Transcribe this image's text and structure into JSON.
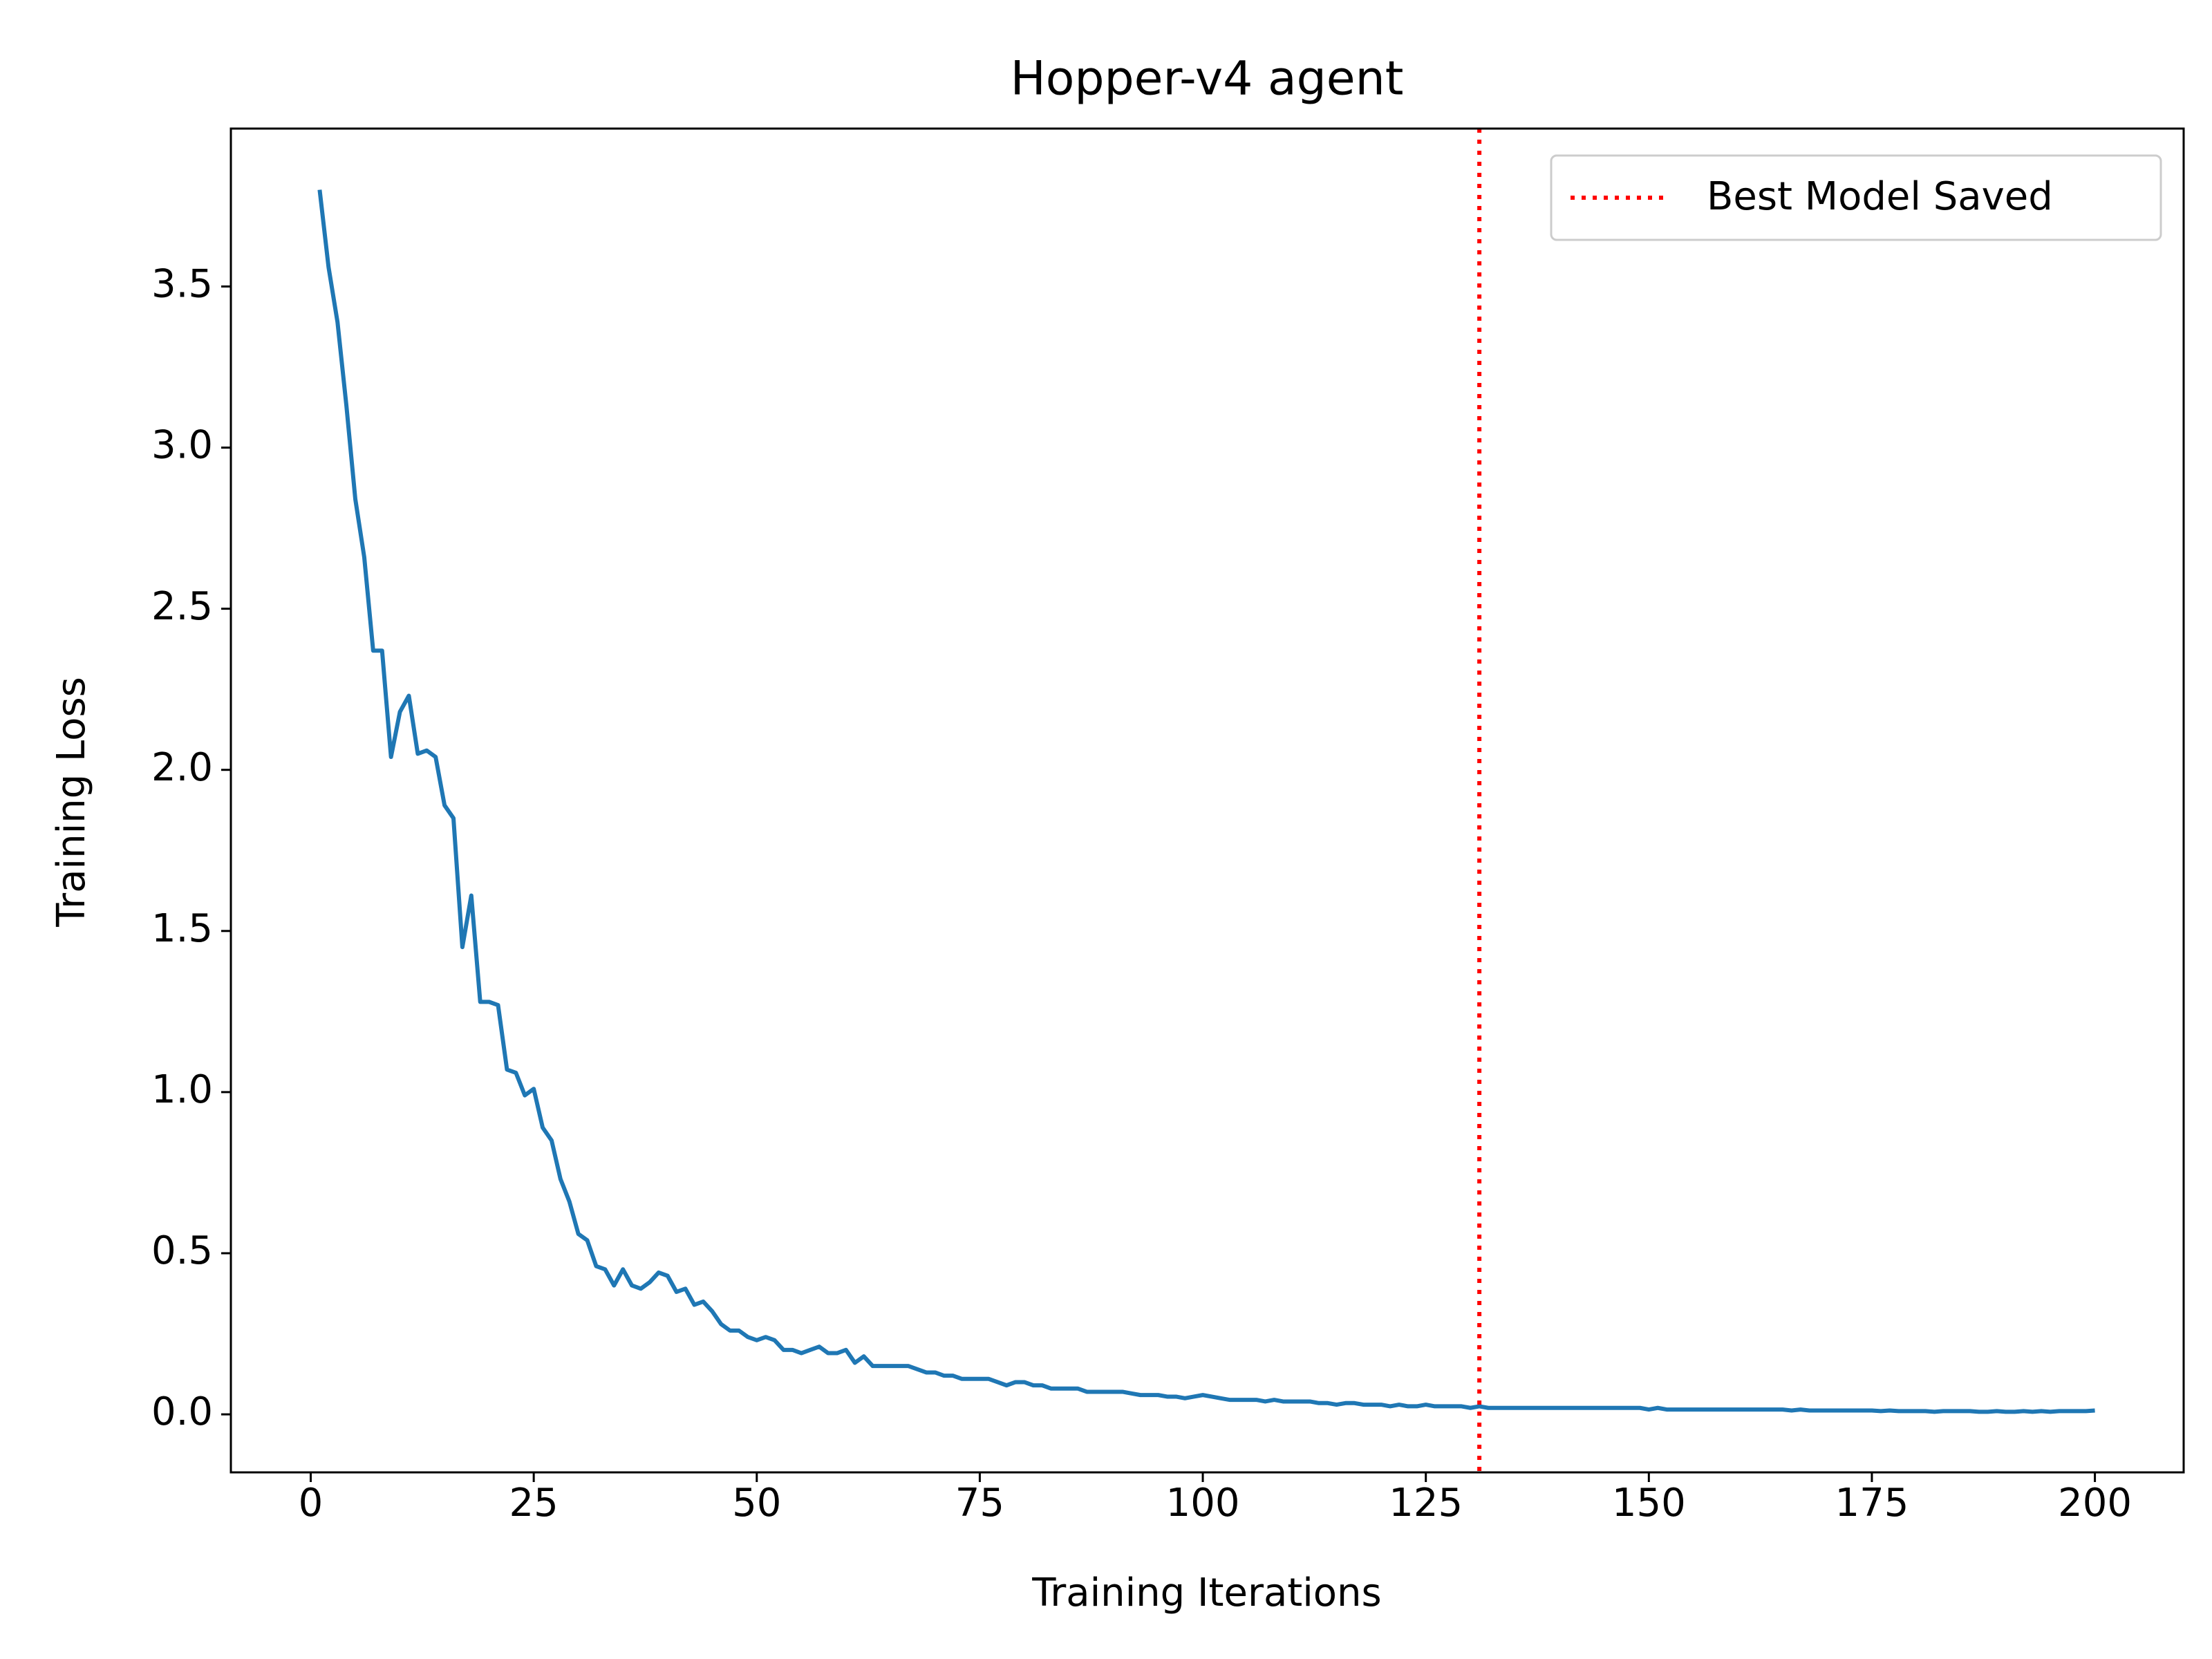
{
  "chart_data": {
    "type": "line",
    "title": "Hopper-v4 agent",
    "xlabel": "Training Iterations",
    "ylabel": "Training Loss",
    "x": [
      1,
      2,
      3,
      4,
      5,
      6,
      7,
      8,
      9,
      10,
      11,
      12,
      13,
      14,
      15,
      16,
      17,
      18,
      19,
      20,
      21,
      22,
      23,
      24,
      25,
      26,
      27,
      28,
      29,
      30,
      31,
      32,
      33,
      34,
      35,
      36,
      37,
      38,
      39,
      40,
      41,
      42,
      43,
      44,
      45,
      46,
      47,
      48,
      49,
      50,
      51,
      52,
      53,
      54,
      55,
      56,
      57,
      58,
      59,
      60,
      61,
      62,
      63,
      64,
      65,
      66,
      67,
      68,
      69,
      70,
      71,
      72,
      73,
      74,
      75,
      76,
      77,
      78,
      79,
      80,
      81,
      82,
      83,
      84,
      85,
      86,
      87,
      88,
      89,
      90,
      91,
      92,
      93,
      94,
      95,
      96,
      97,
      98,
      99,
      100,
      101,
      102,
      103,
      104,
      105,
      106,
      107,
      108,
      109,
      110,
      111,
      112,
      113,
      114,
      115,
      116,
      117,
      118,
      119,
      120,
      121,
      122,
      123,
      124,
      125,
      126,
      127,
      128,
      129,
      130,
      131,
      132,
      133,
      134,
      135,
      136,
      137,
      138,
      139,
      140,
      141,
      142,
      143,
      144,
      145,
      146,
      147,
      148,
      149,
      150,
      151,
      152,
      153,
      154,
      155,
      156,
      157,
      158,
      159,
      160,
      161,
      162,
      163,
      164,
      165,
      166,
      167,
      168,
      169,
      170,
      171,
      172,
      173,
      174,
      175,
      176,
      177,
      178,
      179,
      180,
      181,
      182,
      183,
      184,
      185,
      186,
      187,
      188,
      189,
      190,
      191,
      192,
      193,
      194,
      195,
      196,
      197,
      198,
      199,
      200
    ],
    "values": [
      3.8,
      3.56,
      3.39,
      3.13,
      2.84,
      2.66,
      2.37,
      2.37,
      2.04,
      2.18,
      2.23,
      2.05,
      2.06,
      2.04,
      1.89,
      1.85,
      1.45,
      1.61,
      1.28,
      1.28,
      1.27,
      1.07,
      1.06,
      0.99,
      1.01,
      0.89,
      0.85,
      0.73,
      0.66,
      0.56,
      0.54,
      0.46,
      0.45,
      0.4,
      0.45,
      0.4,
      0.39,
      0.41,
      0.44,
      0.43,
      0.38,
      0.39,
      0.34,
      0.35,
      0.32,
      0.28,
      0.26,
      0.26,
      0.24,
      0.23,
      0.24,
      0.23,
      0.2,
      0.2,
      0.19,
      0.2,
      0.21,
      0.19,
      0.19,
      0.2,
      0.16,
      0.18,
      0.15,
      0.15,
      0.15,
      0.15,
      0.15,
      0.14,
      0.13,
      0.13,
      0.12,
      0.12,
      0.11,
      0.11,
      0.11,
      0.11,
      0.1,
      0.09,
      0.1,
      0.1,
      0.09,
      0.09,
      0.08,
      0.08,
      0.08,
      0.08,
      0.07,
      0.07,
      0.07,
      0.07,
      0.07,
      0.065,
      0.06,
      0.06,
      0.06,
      0.055,
      0.055,
      0.05,
      0.055,
      0.06,
      0.055,
      0.05,
      0.045,
      0.045,
      0.045,
      0.045,
      0.04,
      0.045,
      0.04,
      0.04,
      0.04,
      0.04,
      0.035,
      0.035,
      0.03,
      0.035,
      0.035,
      0.03,
      0.03,
      0.03,
      0.025,
      0.03,
      0.025,
      0.025,
      0.03,
      0.025,
      0.025,
      0.025,
      0.025,
      0.02,
      0.025,
      0.02,
      0.02,
      0.02,
      0.02,
      0.02,
      0.02,
      0.02,
      0.02,
      0.02,
      0.02,
      0.02,
      0.02,
      0.02,
      0.02,
      0.02,
      0.02,
      0.02,
      0.02,
      0.015,
      0.02,
      0.015,
      0.015,
      0.015,
      0.015,
      0.015,
      0.015,
      0.015,
      0.015,
      0.015,
      0.015,
      0.015,
      0.015,
      0.015,
      0.015,
      0.012,
      0.015,
      0.012,
      0.012,
      0.012,
      0.012,
      0.012,
      0.012,
      0.012,
      0.012,
      0.01,
      0.012,
      0.01,
      0.01,
      0.01,
      0.01,
      0.008,
      0.01,
      0.01,
      0.01,
      0.01,
      0.008,
      0.008,
      0.01,
      0.008,
      0.008,
      0.01,
      0.008,
      0.01,
      0.008,
      0.01,
      0.01,
      0.01,
      0.01,
      0.012
    ],
    "color": "#1f77b4",
    "vline": {
      "x": 131,
      "label": "Best Model Saved",
      "color": "red"
    },
    "legend": "upper right",
    "xlim": [
      -8.95,
      209.95
    ],
    "ylim": [
      -0.18,
      3.99
    ],
    "xticks": [
      0,
      25,
      50,
      75,
      100,
      125,
      150,
      175,
      200
    ],
    "yticks": [
      {
        "value": 0,
        "label": "0.0"
      },
      0.5,
      {
        "value": 1,
        "label": "1.0"
      },
      1.5,
      {
        "value": 2,
        "label": "2.0"
      },
      2.5,
      {
        "value": 3,
        "label": "3.0"
      },
      3.5
    ]
  }
}
